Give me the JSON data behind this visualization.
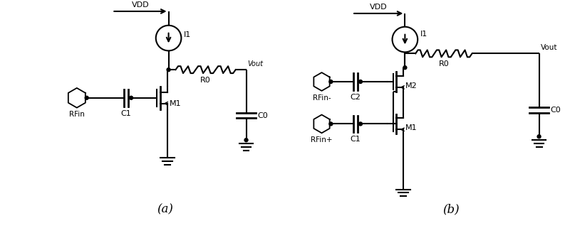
{
  "fig_width": 8.0,
  "fig_height": 3.21,
  "dpi": 100,
  "label_a": "(a)",
  "label_b": "(b)",
  "circuit_a": {
    "vdd_label": "VDD",
    "i1_label": "I1",
    "r0_label": "R0",
    "vout_label": "Vout",
    "c0_label": "C0",
    "c1_label": "C1",
    "m1_label": "M1",
    "rfin_label": "RFin"
  },
  "circuit_b": {
    "vdd_label": "VDD",
    "i1_label": "I1",
    "r0_label": "R0",
    "vout_label": "Vout",
    "c0_label": "C0",
    "c1_label": "C1",
    "c2_label": "C2",
    "m1_label": "M1",
    "m2_label": "M2",
    "rfin_minus_label": "RFin-",
    "rfin_plus_label": "RFin+"
  }
}
